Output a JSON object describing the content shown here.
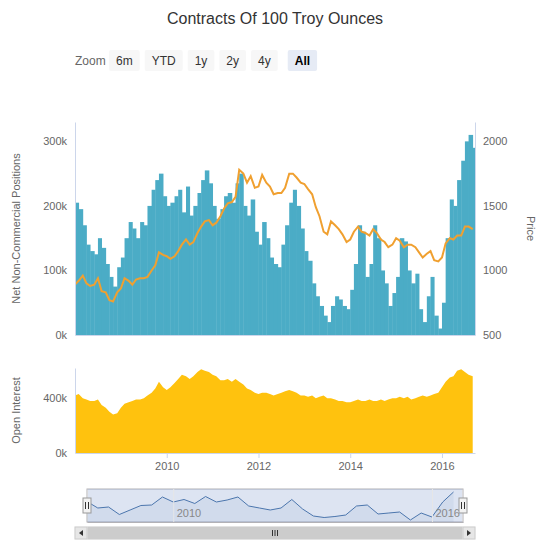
{
  "range_selector": {
    "label": "Zoom",
    "buttons": [
      "6m",
      "YTD",
      "1y",
      "2y",
      "4y",
      "All"
    ],
    "selected": "All"
  },
  "chart_data": [
    {
      "type": "bar",
      "title": "Contracts Of 100 Troy Ounces",
      "ylabel": "Net Non-Commercial Positions",
      "y2label": "Price",
      "tick_labels": "y",
      "xlim": [
        2008,
        2016.72
      ],
      "ylim": [
        0,
        330000
      ],
      "yticks": [
        {
          "value": 0,
          "label": "0k"
        },
        {
          "value": 100000,
          "label": "100k"
        },
        {
          "value": 200000,
          "label": "200k"
        },
        {
          "value": 300000,
          "label": "300k"
        }
      ],
      "y2lim": [
        500,
        2150
      ],
      "y2ticks": [
        500,
        1000,
        1500,
        2000
      ],
      "x": [
        2008,
        2008.08,
        2008.17,
        2008.25,
        2008.33,
        2008.42,
        2008.5,
        2008.58,
        2008.67,
        2008.75,
        2008.83,
        2008.92,
        2009,
        2009.08,
        2009.17,
        2009.25,
        2009.33,
        2009.42,
        2009.5,
        2009.58,
        2009.67,
        2009.75,
        2009.83,
        2009.92,
        2010,
        2010.08,
        2010.17,
        2010.25,
        2010.33,
        2010.42,
        2010.5,
        2010.58,
        2010.67,
        2010.75,
        2010.83,
        2010.92,
        2011,
        2011.08,
        2011.17,
        2011.25,
        2011.33,
        2011.42,
        2011.5,
        2011.58,
        2011.67,
        2011.75,
        2011.83,
        2011.92,
        2012,
        2012.08,
        2012.17,
        2012.25,
        2012.33,
        2012.42,
        2012.5,
        2012.58,
        2012.67,
        2012.75,
        2012.83,
        2012.92,
        2013,
        2013.08,
        2013.17,
        2013.25,
        2013.33,
        2013.42,
        2013.5,
        2013.58,
        2013.67,
        2013.75,
        2013.83,
        2013.92,
        2014,
        2014.08,
        2014.17,
        2014.25,
        2014.33,
        2014.42,
        2014.5,
        2014.58,
        2014.67,
        2014.75,
        2014.83,
        2014.92,
        2015,
        2015.08,
        2015.17,
        2015.25,
        2015.33,
        2015.42,
        2015.5,
        2015.58,
        2015.67,
        2015.75,
        2015.83,
        2015.92,
        2016,
        2016.08,
        2016.17,
        2016.25,
        2016.33,
        2016.42,
        2016.5,
        2016.58,
        2016.67
      ],
      "series": [
        {
          "type": "bar",
          "color": "#4bacc6",
          "values": [
            205000,
            195000,
            170000,
            140000,
            130000,
            125000,
            150000,
            135000,
            110000,
            90000,
            75000,
            105000,
            120000,
            150000,
            175000,
            165000,
            150000,
            175000,
            170000,
            200000,
            225000,
            240000,
            250000,
            215000,
            200000,
            205000,
            215000,
            225000,
            190000,
            230000,
            185000,
            200000,
            220000,
            240000,
            255000,
            235000,
            200000,
            180000,
            195000,
            215000,
            220000,
            205000,
            235000,
            250000,
            200000,
            185000,
            210000,
            160000,
            140000,
            175000,
            150000,
            120000,
            110000,
            105000,
            140000,
            170000,
            205000,
            225000,
            200000,
            165000,
            130000,
            115000,
            80000,
            60000,
            45000,
            30000,
            20000,
            45000,
            60000,
            55000,
            45000,
            40000,
            70000,
            110000,
            170000,
            160000,
            90000,
            110000,
            170000,
            150000,
            100000,
            80000,
            45000,
            65000,
            90000,
            150000,
            145000,
            100000,
            80000,
            95000,
            40000,
            20000,
            60000,
            90000,
            30000,
            10000,
            50000,
            150000,
            210000,
            200000,
            240000,
            270000,
            300000,
            310000,
            290000
          ]
        },
        {
          "type": "line",
          "axis": "y2",
          "color": "#f0a030",
          "values": [
            890,
            920,
            960,
            900,
            880,
            890,
            940,
            840,
            830,
            770,
            760,
            830,
            860,
            940,
            920,
            890,
            930,
            940,
            940,
            950,
            1000,
            1040,
            1140,
            1120,
            1110,
            1090,
            1110,
            1150,
            1200,
            1240,
            1200,
            1220,
            1290,
            1340,
            1380,
            1390,
            1350,
            1370,
            1420,
            1480,
            1520,
            1530,
            1570,
            1780,
            1750,
            1680,
            1730,
            1640,
            1650,
            1740,
            1680,
            1650,
            1590,
            1600,
            1600,
            1640,
            1750,
            1750,
            1720,
            1680,
            1670,
            1630,
            1590,
            1490,
            1420,
            1300,
            1280,
            1380,
            1350,
            1320,
            1280,
            1220,
            1240,
            1300,
            1340,
            1300,
            1290,
            1270,
            1320,
            1290,
            1240,
            1220,
            1180,
            1200,
            1250,
            1230,
            1180,
            1200,
            1200,
            1180,
            1140,
            1100,
            1130,
            1150,
            1080,
            1070,
            1100,
            1210,
            1250,
            1240,
            1270,
            1270,
            1340,
            1340,
            1320
          ]
        }
      ]
    },
    {
      "type": "area",
      "ylabel": "Open Interest",
      "xlim": [
        2008,
        2016.72
      ],
      "xticks": [
        2010,
        2012,
        2014,
        2016
      ],
      "ylim": [
        0,
        620000
      ],
      "yticks": [
        {
          "value": 0,
          "label": "0k"
        },
        {
          "value": 400000,
          "label": "400k"
        }
      ],
      "x": [
        2008,
        2008.08,
        2008.17,
        2008.25,
        2008.33,
        2008.42,
        2008.5,
        2008.58,
        2008.67,
        2008.75,
        2008.83,
        2008.92,
        2009,
        2009.08,
        2009.17,
        2009.25,
        2009.33,
        2009.42,
        2009.5,
        2009.58,
        2009.67,
        2009.75,
        2009.83,
        2009.92,
        2010,
        2010.08,
        2010.17,
        2010.25,
        2010.33,
        2010.42,
        2010.5,
        2010.58,
        2010.67,
        2010.75,
        2010.83,
        2010.92,
        2011,
        2011.08,
        2011.17,
        2011.25,
        2011.33,
        2011.42,
        2011.5,
        2011.58,
        2011.67,
        2011.75,
        2011.83,
        2011.92,
        2012,
        2012.08,
        2012.17,
        2012.25,
        2012.33,
        2012.42,
        2012.5,
        2012.58,
        2012.67,
        2012.75,
        2012.83,
        2012.92,
        2013,
        2013.08,
        2013.17,
        2013.25,
        2013.33,
        2013.42,
        2013.5,
        2013.58,
        2013.67,
        2013.75,
        2013.83,
        2013.92,
        2014,
        2014.08,
        2014.17,
        2014.25,
        2014.33,
        2014.42,
        2014.5,
        2014.58,
        2014.67,
        2014.75,
        2014.83,
        2014.92,
        2015,
        2015.08,
        2015.17,
        2015.25,
        2015.33,
        2015.42,
        2015.5,
        2015.58,
        2015.67,
        2015.75,
        2015.83,
        2015.92,
        2016,
        2016.08,
        2016.17,
        2016.25,
        2016.33,
        2016.42,
        2016.5,
        2016.58,
        2016.67
      ],
      "series": [
        {
          "color": "#ffc20e",
          "values": [
            420000,
            430000,
            400000,
            390000,
            380000,
            380000,
            390000,
            350000,
            330000,
            300000,
            280000,
            290000,
            330000,
            360000,
            370000,
            380000,
            390000,
            390000,
            400000,
            420000,
            440000,
            470000,
            520000,
            480000,
            460000,
            480000,
            510000,
            540000,
            570000,
            560000,
            540000,
            560000,
            590000,
            610000,
            600000,
            590000,
            570000,
            560000,
            530000,
            530000,
            540000,
            520000,
            540000,
            520000,
            500000,
            470000,
            460000,
            440000,
            430000,
            440000,
            440000,
            430000,
            420000,
            430000,
            440000,
            450000,
            460000,
            450000,
            440000,
            420000,
            420000,
            410000,
            420000,
            400000,
            410000,
            420000,
            400000,
            400000,
            390000,
            380000,
            380000,
            370000,
            370000,
            380000,
            390000,
            380000,
            380000,
            390000,
            380000,
            380000,
            390000,
            380000,
            390000,
            400000,
            400000,
            410000,
            400000,
            410000,
            390000,
            400000,
            410000,
            420000,
            410000,
            420000,
            430000,
            440000,
            480000,
            520000,
            550000,
            560000,
            600000,
            610000,
            590000,
            570000,
            560000
          ]
        }
      ]
    },
    {
      "type": "line",
      "tick_labels": "x",
      "xlim": [
        2008,
        2016.72
      ],
      "xticks": [
        2010,
        2016
      ],
      "ylim": [
        0,
        330000
      ],
      "x": [
        2008,
        2008.25,
        2008.5,
        2008.75,
        2009,
        2009.25,
        2009.5,
        2009.75,
        2010,
        2010.25,
        2010.5,
        2010.75,
        2011,
        2011.25,
        2011.5,
        2011.75,
        2012,
        2012.25,
        2012.5,
        2012.75,
        2013,
        2013.25,
        2013.5,
        2013.75,
        2014,
        2014.25,
        2014.5,
        2014.75,
        2015,
        2015.25,
        2015.5,
        2015.75,
        2016,
        2016.25,
        2016.5
      ],
      "series": [
        {
          "color": "#4572a7",
          "values": [
            205000,
            140000,
            150000,
            75000,
            120000,
            165000,
            170000,
            250000,
            200000,
            225000,
            185000,
            255000,
            200000,
            220000,
            250000,
            160000,
            140000,
            120000,
            140000,
            225000,
            130000,
            60000,
            45000,
            55000,
            70000,
            160000,
            170000,
            80000,
            90000,
            100000,
            20000,
            90000,
            50000,
            200000,
            300000
          ]
        }
      ]
    }
  ]
}
